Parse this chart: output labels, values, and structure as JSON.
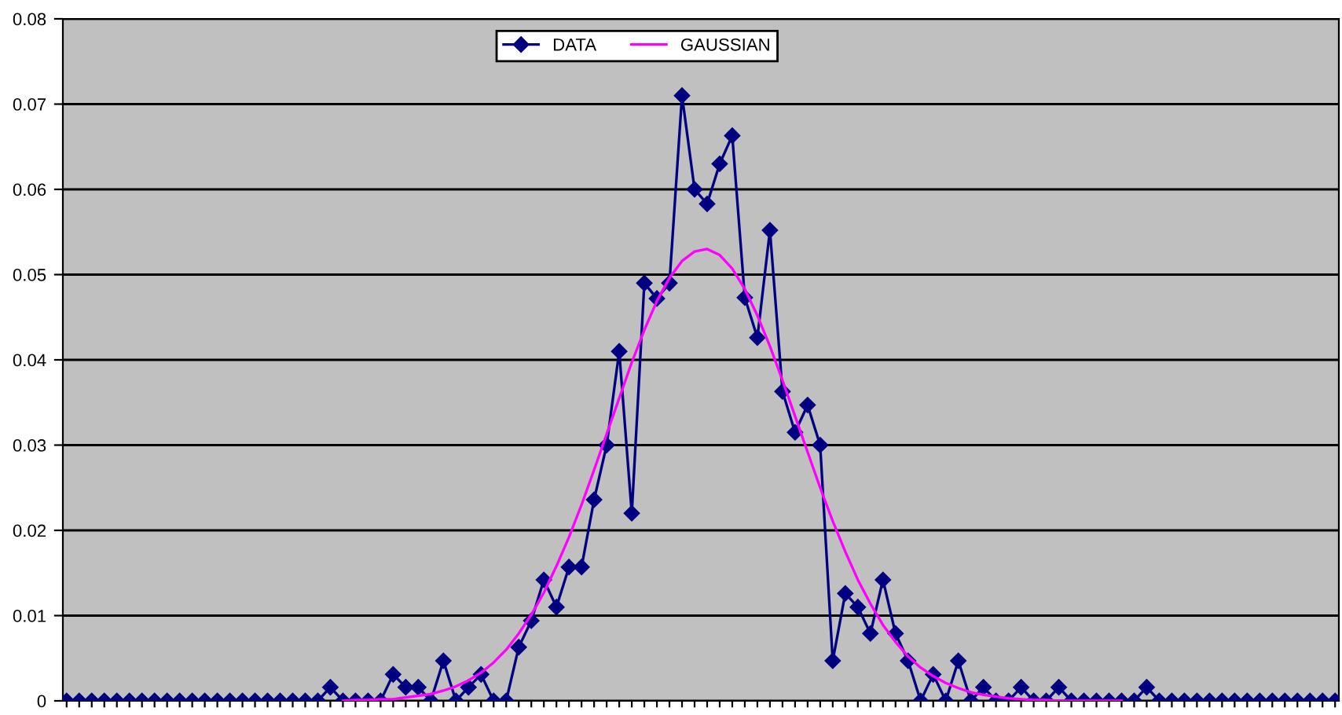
{
  "chart_data": {
    "type": "line",
    "categories": [
      null,
      null,
      null,
      null,
      null,
      null,
      null,
      null,
      null,
      null,
      null,
      null,
      null,
      null,
      null,
      null,
      null,
      null,
      null,
      null,
      null,
      null,
      null,
      null,
      null,
      null,
      null,
      null,
      null,
      null,
      null,
      null,
      null,
      null,
      null,
      null,
      null,
      null,
      null,
      null,
      null,
      null,
      null,
      null,
      null,
      null,
      null,
      null,
      null,
      null,
      null,
      null,
      null,
      null,
      null,
      null,
      null,
      null,
      null,
      null,
      null,
      null,
      null,
      null,
      null,
      null,
      null,
      null,
      null,
      null,
      null,
      null,
      null,
      null,
      null,
      null,
      null,
      null,
      null,
      null,
      null,
      null,
      null,
      null,
      null,
      null,
      null,
      null,
      null,
      null,
      null,
      null,
      null,
      null,
      null,
      null,
      null,
      null,
      null,
      null,
      null,
      null
    ],
    "series": [
      {
        "name": "DATA",
        "color": "#000080",
        "marker": "diamond",
        "values": [
          0,
          0,
          0,
          0,
          0,
          0,
          0,
          0,
          0,
          0,
          0,
          0,
          0,
          0,
          0,
          0,
          0,
          0,
          0,
          0,
          0,
          0.0016,
          0,
          0,
          0,
          0,
          0.0031,
          0.0016,
          0.0016,
          0,
          0.0047,
          0,
          0.0016,
          0.0031,
          0,
          0,
          0.0063,
          0.0094,
          0.0142,
          0.011,
          0.0157,
          0.0157,
          0.0236,
          0.03,
          0.041,
          0.022,
          0.049,
          0.0472,
          0.049,
          0.071,
          0.06,
          0.0583,
          0.063,
          0.0663,
          0.0473,
          0.0426,
          0.0552,
          0.0363,
          0.0315,
          0.0347,
          0.03,
          0.0047,
          0.0126,
          0.011,
          0.0079,
          0.0142,
          0.0079,
          0.0047,
          0,
          0.0031,
          0,
          0.0047,
          0,
          0.0016,
          0,
          0,
          0.0016,
          0,
          0,
          0.0016,
          0,
          0,
          0,
          0,
          0,
          0,
          0.0016,
          0,
          0,
          0,
          0,
          0,
          0,
          0,
          0,
          0,
          0,
          0,
          0,
          0,
          0,
          0
        ]
      },
      {
        "name": "GAUSSIAN",
        "color": "#ff00ff",
        "marker": "none",
        "values": [
          null,
          null,
          null,
          null,
          null,
          null,
          null,
          null,
          null,
          null,
          null,
          null,
          null,
          null,
          null,
          null,
          null,
          null,
          null,
          null,
          null,
          null,
          0,
          0.0001,
          0.0001,
          0.0002,
          0.0002,
          0.0004,
          0.0006,
          0.0008,
          0.0012,
          0.0017,
          0.0024,
          0.0033,
          0.0045,
          0.006,
          0.0079,
          0.0101,
          0.0127,
          0.0158,
          0.0192,
          0.023,
          0.0271,
          0.0313,
          0.0355,
          0.0397,
          0.0435,
          0.0469,
          0.0496,
          0.0516,
          0.0527,
          0.053,
          0.0523,
          0.0507,
          0.0483,
          0.0452,
          0.0416,
          0.0376,
          0.0334,
          0.0292,
          0.025,
          0.0211,
          0.0175,
          0.0142,
          0.0114,
          0.0089,
          0.0069,
          0.0052,
          0.0039,
          0.0029,
          0.0021,
          0.0015,
          0.001,
          0.0007,
          0.0005,
          0.0003,
          0.0002,
          0.0001,
          0.0001,
          0,
          0,
          0,
          0,
          0,
          0,
          null,
          null,
          null,
          null,
          null,
          null,
          null,
          null,
          null,
          null,
          null,
          null,
          null,
          null,
          null,
          null,
          null
        ]
      }
    ],
    "ylim": [
      0,
      0.08
    ],
    "yticks": [
      0,
      0.01,
      0.02,
      0.03,
      0.04,
      0.05,
      0.06,
      0.07,
      0.08
    ],
    "grid": "y",
    "legend": "top",
    "tick_labels": "y"
  }
}
